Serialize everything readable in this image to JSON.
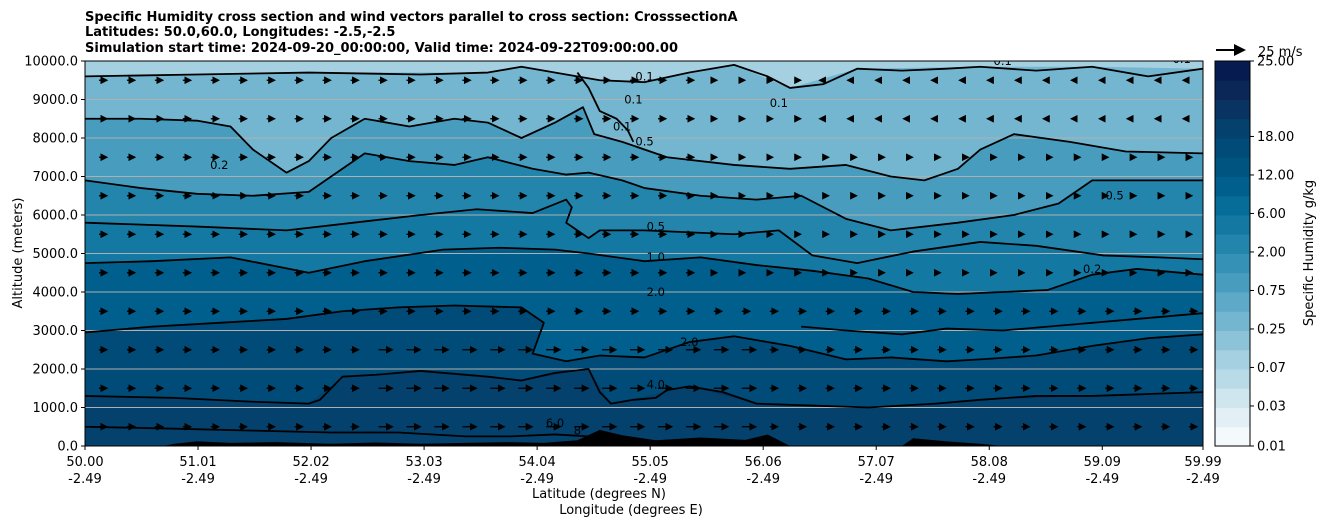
{
  "chart_data": {
    "type": "heatmap",
    "title_lines": [
      "Specific Humidity cross section and wind vectors parallel to cross section: CrosssectionA",
      "Latitudes: 50.0,60.0, Longitudes: -2.5,-2.5",
      "Simulation start time: 2024-09-20_00:00:00, Valid time: 2024-09-22T09:00:00.00"
    ],
    "ylabel": "Altitude (meters)",
    "xlabel_lines": [
      "Latitude (degrees N)",
      "Longitude (degrees E)"
    ],
    "ylim": [
      0,
      10000
    ],
    "xlim": [
      50.0,
      59.99
    ],
    "yticks": [
      "0.0",
      "1000.0",
      "2000.0",
      "3000.0",
      "4000.0",
      "5000.0",
      "6000.0",
      "7000.0",
      "8000.0",
      "9000.0",
      "10000.0"
    ],
    "xticks": [
      {
        "lat": "50.00",
        "lon": "-2.49"
      },
      {
        "lat": "51.01",
        "lon": "-2.49"
      },
      {
        "lat": "52.02",
        "lon": "-2.49"
      },
      {
        "lat": "53.03",
        "lon": "-2.49"
      },
      {
        "lat": "54.04",
        "lon": "-2.49"
      },
      {
        "lat": "55.05",
        "lon": "-2.49"
      },
      {
        "lat": "56.06",
        "lon": "-2.49"
      },
      {
        "lat": "57.07",
        "lon": "-2.49"
      },
      {
        "lat": "58.08",
        "lon": "-2.49"
      },
      {
        "lat": "59.09",
        "lon": "-2.49"
      },
      {
        "lat": "59.99",
        "lon": "-2.49"
      }
    ],
    "grid": "horizontal",
    "colorbar": {
      "label": "Specific Humidity g/kg",
      "tick_labels": [
        "0.01",
        "0.03",
        "0.07",
        "0.25",
        "0.75",
        "2.00",
        "6.00",
        "12.00",
        "18.00",
        "25.00"
      ],
      "levels": 20,
      "colors": [
        "#f4f9fc",
        "#e2f0f6",
        "#cfe6ef",
        "#b9dbe8",
        "#a5d0e1",
        "#8dc3d8",
        "#74b6cf",
        "#5ea9c7",
        "#489dbe",
        "#3591b6",
        "#2485ac",
        "#1479a2",
        "#066c98",
        "#005f8c",
        "#005580",
        "#004b77",
        "#04416d",
        "#093461",
        "#0a2757",
        "#061b4f"
      ]
    },
    "quiver_key": "25 m/s",
    "contour_labels": [
      {
        "text": "0.1",
        "lat": 55.0,
        "alt": 9500
      },
      {
        "text": "0.1",
        "lat": 54.9,
        "alt": 8900
      },
      {
        "text": "0.1",
        "lat": 56.2,
        "alt": 8800
      },
      {
        "text": "0.1",
        "lat": 54.8,
        "alt": 8200
      },
      {
        "text": "0.5",
        "lat": 55.0,
        "alt": 7800
      },
      {
        "text": "0.2",
        "lat": 51.2,
        "alt": 7200
      },
      {
        "text": "0.5",
        "lat": 55.1,
        "alt": 5600
      },
      {
        "text": "1.0",
        "lat": 55.1,
        "alt": 4800
      },
      {
        "text": "2.0",
        "lat": 55.1,
        "alt": 3900
      },
      {
        "text": "2.0",
        "lat": 55.4,
        "alt": 2600
      },
      {
        "text": "4.0",
        "lat": 55.1,
        "alt": 1500
      },
      {
        "text": "0.5",
        "lat": 59.2,
        "alt": 6400
      },
      {
        "text": "0.2",
        "lat": 59.0,
        "alt": 4500
      },
      {
        "text": "0.1",
        "lat": 58.2,
        "alt": 9900
      },
      {
        "text": "0.1",
        "lat": 59.8,
        "alt": 9950
      },
      {
        "text": "6.0",
        "lat": 54.2,
        "alt": 500
      },
      {
        "text": "8",
        "lat": 54.4,
        "alt": 300
      }
    ],
    "contours": [
      {
        "level": "0.1",
        "points": [
          [
            50.0,
            9600
          ],
          [
            51.0,
            9650
          ],
          [
            52.0,
            9700
          ],
          [
            53.0,
            9650
          ],
          [
            53.6,
            9700
          ],
          [
            53.9,
            9850
          ],
          [
            54.3,
            9650
          ],
          [
            54.6,
            9500
          ],
          [
            55.0,
            9450
          ],
          [
            55.4,
            9700
          ],
          [
            55.8,
            9900
          ],
          [
            56.1,
            9600
          ],
          [
            56.3,
            9300
          ],
          [
            56.6,
            9400
          ],
          [
            56.9,
            9800
          ],
          [
            57.3,
            9750
          ],
          [
            57.7,
            9800
          ],
          [
            58.0,
            9850
          ],
          [
            58.5,
            9750
          ],
          [
            59.0,
            9850
          ],
          [
            59.5,
            9600
          ],
          [
            59.99,
            9800
          ]
        ]
      },
      {
        "level": "0.1b",
        "points": [
          [
            54.4,
            9700
          ],
          [
            54.5,
            9300
          ],
          [
            54.6,
            8700
          ],
          [
            54.75,
            8500
          ],
          [
            54.85,
            8200
          ],
          [
            54.9,
            7900
          ]
        ]
      },
      {
        "level": "0.2",
        "points": [
          [
            50.0,
            8500
          ],
          [
            50.5,
            8500
          ],
          [
            51.0,
            8450
          ],
          [
            51.3,
            8300
          ],
          [
            51.5,
            7700
          ],
          [
            51.8,
            7100
          ],
          [
            52.0,
            7400
          ],
          [
            52.2,
            8000
          ],
          [
            52.5,
            8500
          ],
          [
            52.9,
            8300
          ],
          [
            53.3,
            8500
          ],
          [
            53.6,
            8400
          ],
          [
            53.9,
            8000
          ],
          [
            54.2,
            8400
          ],
          [
            54.45,
            8800
          ],
          [
            54.55,
            8100
          ],
          [
            54.8,
            7900
          ],
          [
            55.2,
            7500
          ],
          [
            55.8,
            7300
          ],
          [
            56.3,
            7200
          ],
          [
            56.8,
            7300
          ],
          [
            57.2,
            7000
          ],
          [
            57.5,
            6900
          ],
          [
            57.8,
            7200
          ],
          [
            58.0,
            7700
          ],
          [
            58.3,
            8100
          ],
          [
            58.8,
            7900
          ],
          [
            59.3,
            7650
          ],
          [
            59.99,
            7600
          ]
        ]
      },
      {
        "level": "0.5",
        "points": [
          [
            50.0,
            6900
          ],
          [
            50.5,
            6700
          ],
          [
            51.0,
            6550
          ],
          [
            51.5,
            6500
          ],
          [
            52.0,
            6600
          ],
          [
            52.3,
            7200
          ],
          [
            52.5,
            7600
          ],
          [
            52.9,
            7400
          ],
          [
            53.3,
            7300
          ],
          [
            53.6,
            7500
          ],
          [
            54.0,
            7200
          ],
          [
            54.3,
            7050
          ],
          [
            54.5,
            7100
          ],
          [
            54.8,
            6900
          ],
          [
            55.0,
            6700
          ],
          [
            55.5,
            6500
          ],
          [
            56.0,
            6400
          ],
          [
            56.4,
            6500
          ],
          [
            56.8,
            5900
          ],
          [
            57.2,
            5600
          ],
          [
            57.8,
            5800
          ],
          [
            58.3,
            6000
          ],
          [
            58.7,
            6300
          ],
          [
            59.0,
            6900
          ],
          [
            59.4,
            6900
          ],
          [
            59.99,
            6900
          ]
        ]
      },
      {
        "level": "1.0",
        "points": [
          [
            50.0,
            5800
          ],
          [
            51.0,
            5700
          ],
          [
            51.8,
            5600
          ],
          [
            52.4,
            5800
          ],
          [
            53.0,
            6000
          ],
          [
            53.5,
            6150
          ],
          [
            54.0,
            6050
          ],
          [
            54.3,
            6400
          ],
          [
            54.35,
            6200
          ],
          [
            54.3,
            5800
          ],
          [
            54.5,
            5400
          ],
          [
            54.6,
            5600
          ],
          [
            55.0,
            5600
          ],
          [
            55.8,
            5500
          ],
          [
            56.2,
            5600
          ],
          [
            56.5,
            4950
          ],
          [
            56.9,
            4750
          ],
          [
            57.4,
            5050
          ],
          [
            58.0,
            5300
          ],
          [
            58.5,
            5200
          ],
          [
            59.1,
            4950
          ],
          [
            59.6,
            4900
          ],
          [
            59.99,
            4850
          ]
        ]
      },
      {
        "level": "2.0",
        "points": [
          [
            50.0,
            4750
          ],
          [
            50.6,
            4800
          ],
          [
            51.3,
            4900
          ],
          [
            52.0,
            4500
          ],
          [
            52.5,
            4800
          ],
          [
            53.2,
            5100
          ],
          [
            53.7,
            5150
          ],
          [
            54.2,
            5100
          ],
          [
            54.5,
            5000
          ],
          [
            55.0,
            4800
          ],
          [
            55.5,
            4900
          ],
          [
            56.0,
            4700
          ],
          [
            56.5,
            4550
          ],
          [
            57.0,
            4350
          ],
          [
            57.4,
            4000
          ],
          [
            57.8,
            3950
          ],
          [
            58.2,
            4000
          ],
          [
            58.6,
            4050
          ],
          [
            59.0,
            4450
          ],
          [
            59.4,
            4600
          ],
          [
            59.99,
            4450
          ]
        ]
      },
      {
        "level": "4.0",
        "points": [
          [
            50.0,
            2950
          ],
          [
            50.6,
            3100
          ],
          [
            51.2,
            3200
          ],
          [
            51.8,
            3300
          ],
          [
            52.3,
            3500
          ],
          [
            52.8,
            3600
          ],
          [
            53.3,
            3650
          ],
          [
            53.9,
            3600
          ],
          [
            54.1,
            3200
          ],
          [
            54.0,
            2400
          ],
          [
            54.3,
            2200
          ],
          [
            54.6,
            2350
          ],
          [
            55.0,
            2300
          ],
          [
            55.4,
            2700
          ],
          [
            55.8,
            2850
          ],
          [
            56.3,
            2600
          ],
          [
            56.8,
            2250
          ],
          [
            57.2,
            2300
          ],
          [
            57.7,
            2200
          ],
          [
            58.0,
            2250
          ],
          [
            58.5,
            2350
          ],
          [
            59.0,
            2600
          ],
          [
            59.5,
            2800
          ],
          [
            59.99,
            2900
          ]
        ]
      },
      {
        "level": "4.0b",
        "points": [
          [
            56.4,
            3100
          ],
          [
            56.8,
            3000
          ],
          [
            57.3,
            2900
          ],
          [
            57.7,
            3050
          ],
          [
            58.2,
            3000
          ],
          [
            58.8,
            3150
          ],
          [
            59.4,
            3300
          ],
          [
            59.99,
            3450
          ]
        ]
      },
      {
        "level": "6.0",
        "points": [
          [
            50.0,
            1300
          ],
          [
            50.8,
            1250
          ],
          [
            51.5,
            1150
          ],
          [
            52.0,
            1100
          ],
          [
            52.1,
            1200
          ],
          [
            52.3,
            1800
          ],
          [
            52.6,
            1850
          ],
          [
            53.0,
            1950
          ],
          [
            53.6,
            1800
          ],
          [
            53.9,
            1700
          ],
          [
            54.2,
            1900
          ],
          [
            54.5,
            2000
          ],
          [
            54.6,
            1400
          ],
          [
            54.7,
            1100
          ],
          [
            54.9,
            1200
          ],
          [
            55.1,
            1250
          ],
          [
            55.2,
            1450
          ],
          [
            55.4,
            1550
          ],
          [
            55.7,
            1400
          ],
          [
            56.0,
            1100
          ],
          [
            56.5,
            1050
          ],
          [
            57.0,
            1000
          ],
          [
            57.6,
            1100
          ],
          [
            58.0,
            1200
          ],
          [
            58.5,
            1300
          ],
          [
            59.0,
            1300
          ],
          [
            59.5,
            1350
          ],
          [
            59.99,
            1400
          ]
        ]
      },
      {
        "level": "8.0",
        "points": [
          [
            50.0,
            500
          ],
          [
            50.8,
            450
          ],
          [
            51.5,
            400
          ],
          [
            52.2,
            350
          ],
          [
            52.8,
            350
          ],
          [
            53.4,
            250
          ],
          [
            53.8,
            250
          ],
          [
            54.2,
            300
          ],
          [
            54.5,
            250
          ]
        ]
      }
    ]
  }
}
